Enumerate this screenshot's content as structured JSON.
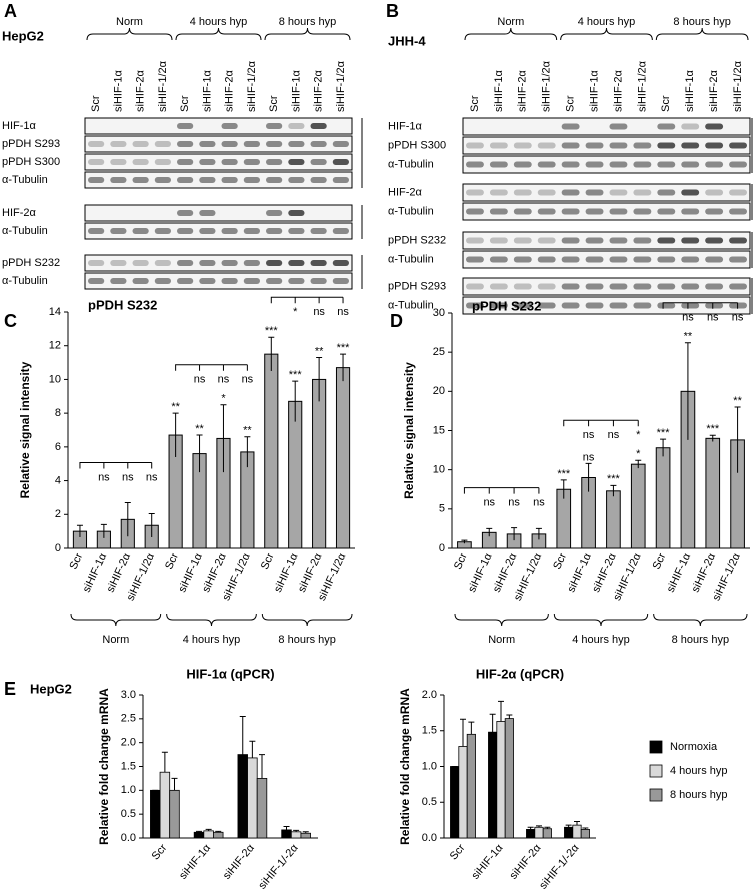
{
  "blots": [
    {
      "label": "A",
      "cell_line": "HepG2",
      "groups": [
        "Norm",
        "4 hours hyp",
        "8 hours hyp"
      ],
      "lanes": [
        "Scr",
        "siHIF-1α",
        "siHIF-2α",
        "siHIF-1/2α",
        "Scr",
        "siHIF-1α",
        "siHIF-2α",
        "siHIF-1/2α",
        "Scr",
        "siHIF-1α",
        "siHIF-2α",
        "siHIF-1/2α"
      ],
      "rows": [
        "HIF-1α",
        "pPDH S293",
        "pPDH S300",
        "α-Tubulin",
        "HIF-2α",
        "α-Tubulin",
        "pPDH S232",
        "α-Tubulin"
      ]
    },
    {
      "label": "B",
      "cell_line": "JHH-4",
      "groups": [
        "Norm",
        "4 hours hyp",
        "8 hours hyp"
      ],
      "lanes": [
        "Scr",
        "siHIF-1α",
        "siHIF-2α",
        "siHIF-1/2α",
        "Scr",
        "siHIF-1α",
        "siHIF-2α",
        "siHIF-1/2α",
        "Scr",
        "siHIF-1α",
        "siHIF-2α",
        "siHIF-1/2α"
      ],
      "rows": [
        "HIF-1α",
        "pPDH S300",
        "α-Tubulin",
        "HIF-2α",
        "α-Tubulin",
        "pPDH S232",
        "α-Tubulin",
        "pPDH S293",
        "α-Tubulin"
      ]
    }
  ],
  "chart_data": [
    {
      "label": "C",
      "type": "bar",
      "title": "pPDH S232",
      "y_label": "Relative signal intensity",
      "categories": [
        "Scr",
        "siHIF-1α",
        "siHIF-2α",
        "siHIF-1/2α",
        "Scr",
        "siHIF-1α",
        "siHIF-2α",
        "siHIF-1/2α",
        "Scr",
        "siHIF-1α",
        "siHIF-2α",
        "siHIF-1/2α"
      ],
      "groups": [
        "Norm",
        "4 hours hyp",
        "8 hours hyp"
      ],
      "values": [
        1.0,
        1.0,
        1.7,
        1.35,
        6.7,
        5.6,
        6.5,
        5.7,
        11.5,
        8.7,
        10.0,
        10.7
      ],
      "errors": [
        0.35,
        0.4,
        1.0,
        0.7,
        1.3,
        1.1,
        2.0,
        0.9,
        1.0,
        1.2,
        1.3,
        0.8
      ],
      "stars": [
        null,
        null,
        null,
        null,
        "**",
        "**",
        "*",
        "**",
        "***",
        "***",
        "**",
        "***"
      ],
      "bracket_labels": [
        null,
        "ns",
        "ns",
        "ns",
        null,
        "ns",
        "ns",
        "ns",
        null,
        "*",
        "ns",
        "ns"
      ],
      "color": "#a6a6a6",
      "ylim": [
        0,
        14
      ],
      "yticks": [
        0,
        2,
        4,
        6,
        8,
        10,
        12,
        14
      ]
    },
    {
      "label": "D",
      "type": "bar",
      "title": "pPDH S232",
      "y_label": "Relative signal intensity",
      "categories": [
        "Scr",
        "siHIF-1α",
        "siHIF-2α",
        "siHIF-1/2α",
        "Scr",
        "siHIF-1α",
        "siHIF-2α",
        "siHIF-1/2α",
        "Scr",
        "siHIF-1α",
        "siHIF-2α",
        "siHIF-1/2α"
      ],
      "groups": [
        "Norm",
        "4 hours hyp",
        "8 hours hyp"
      ],
      "values": [
        0.8,
        2.0,
        1.8,
        1.8,
        7.5,
        9.0,
        7.3,
        10.7,
        12.8,
        20.0,
        14.0,
        13.8
      ],
      "errors": [
        0.2,
        0.5,
        0.8,
        0.7,
        1.2,
        1.8,
        0.7,
        0.5,
        1.1,
        6.2,
        0.4,
        4.2
      ],
      "stars": [
        null,
        null,
        null,
        null,
        "***",
        "ns",
        "***",
        "*",
        "***",
        "**",
        "***",
        "**"
      ],
      "bracket_labels": [
        null,
        "ns",
        "ns",
        "ns",
        null,
        "ns",
        "ns",
        "*",
        null,
        "ns",
        "ns",
        "ns"
      ],
      "color": "#a6a6a6",
      "ylim": [
        0,
        30
      ],
      "yticks": [
        0,
        5,
        10,
        15,
        20,
        25,
        30
      ]
    },
    {
      "type": "grouped_bar",
      "title": "HIF-1α (qPCR)",
      "y_label": "Relative fold change mRNA",
      "categories": [
        "Scr",
        "siHIF-1α",
        "siHIF-2α",
        "siHIF-1/-2α"
      ],
      "series": [
        {
          "color": "#000000",
          "values": [
            1.0,
            0.12,
            1.75,
            0.17
          ],
          "errors": [
            0,
            0.02,
            0.8,
            0.07
          ]
        },
        {
          "color": "#d9d9d9",
          "values": [
            1.38,
            0.15,
            1.68,
            0.13
          ],
          "errors": [
            0.42,
            0.03,
            0.35,
            0.03
          ]
        },
        {
          "color": "#999999",
          "values": [
            1.0,
            0.12,
            1.25,
            0.1
          ],
          "errors": [
            0.25,
            0.02,
            0.5,
            0.03
          ]
        }
      ],
      "ylim": [
        0,
        3
      ],
      "yticks": [
        {
          "value": 0,
          "label": "0.0"
        },
        {
          "value": 0.5,
          "label": "0.5"
        },
        {
          "value": 1,
          "label": "1.0"
        },
        {
          "value": 1.5,
          "label": "1.5"
        },
        {
          "value": 2,
          "label": "2.0"
        },
        {
          "value": 2.5,
          "label": "2.5"
        },
        {
          "value": 3,
          "label": "3.0"
        }
      ]
    },
    {
      "type": "grouped_bar",
      "title": "HIF-2α (qPCR)",
      "y_label": "Relative fold change mRNA",
      "categories": [
        "Scr",
        "siHIF-1α",
        "siHIF-2α",
        "siHIF-1/-2α"
      ],
      "series": [
        {
          "name": "Normoxia",
          "color": "#000000",
          "values": [
            1.0,
            1.48,
            0.12,
            0.15
          ],
          "errors": [
            0,
            0.25,
            0.03,
            0.03
          ]
        },
        {
          "name": "4 hours hyp",
          "color": "#d9d9d9",
          "values": [
            1.28,
            1.63,
            0.15,
            0.18
          ],
          "errors": [
            0.38,
            0.28,
            0.02,
            0.05
          ]
        },
        {
          "name": "8 hours hyp",
          "color": "#999999",
          "values": [
            1.45,
            1.67,
            0.13,
            0.12
          ],
          "errors": [
            0.17,
            0.05,
            0.02,
            0.02
          ]
        }
      ],
      "ylim": [
        0,
        2
      ],
      "yticks": [
        {
          "value": 0,
          "label": "0.0"
        },
        {
          "value": 0.5,
          "label": "0.5"
        },
        {
          "value": 1,
          "label": "1.0"
        },
        {
          "value": 1.5,
          "label": "1.5"
        },
        {
          "value": 2,
          "label": "2.0"
        }
      ],
      "legend": "right"
    }
  ],
  "panel_e": {
    "label": "E",
    "cell_line": "HepG2"
  }
}
